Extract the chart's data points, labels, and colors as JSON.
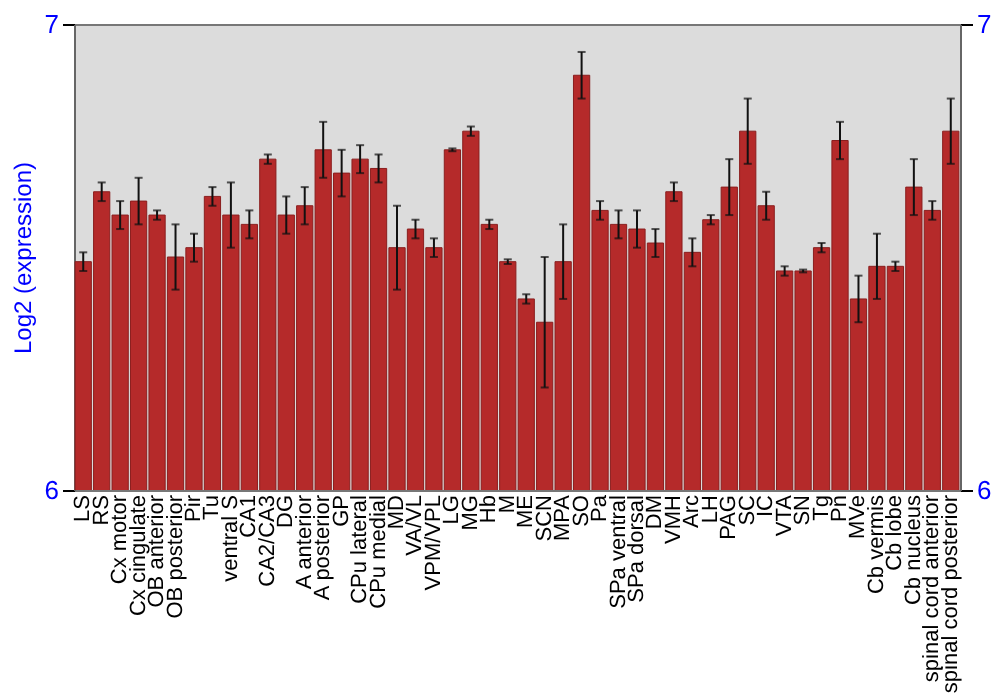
{
  "chart_data": {
    "type": "bar",
    "ylabel": "Log2 (expression)",
    "categories": [
      "LS",
      "RS",
      "Cx motor",
      "Cx cingulate",
      "OB anterior",
      "OB posterior",
      "Pir",
      "Tu",
      "ventral S",
      "CA1",
      "CA2/CA3",
      "DG",
      "A anterior",
      "A posterior",
      "GP",
      "CPu lateral",
      "CPu medial",
      "MD",
      "VA/VL",
      "VPM/VPL",
      "LG",
      "MG",
      "Hb",
      "M",
      "ME",
      "SCN",
      "MPA",
      "SO",
      "Pa",
      "SPa ventral",
      "SPa dorsal",
      "DM",
      "VMH",
      "Arc",
      "LH",
      "PAG",
      "SC",
      "IC",
      "VTA",
      "SN",
      "Tg",
      "Pn",
      "MVe",
      "Cb vermis",
      "Cb lobe",
      "Cb nucleus",
      "spinal cord anterior",
      "spinal cord posterior"
    ],
    "values": [
      6.49,
      6.64,
      6.59,
      6.62,
      6.59,
      6.5,
      6.52,
      6.63,
      6.59,
      6.57,
      6.71,
      6.59,
      6.61,
      6.73,
      6.68,
      6.71,
      6.69,
      6.52,
      6.56,
      6.52,
      6.73,
      6.77,
      6.57,
      6.49,
      6.41,
      6.36,
      6.49,
      6.89,
      6.6,
      6.57,
      6.56,
      6.53,
      6.64,
      6.51,
      6.58,
      6.65,
      6.77,
      6.61,
      6.47,
      6.47,
      6.52,
      6.75,
      6.41,
      6.48,
      6.48,
      6.65,
      6.6,
      6.77
    ],
    "errors": [
      0.02,
      0.02,
      0.03,
      0.05,
      0.01,
      0.07,
      0.03,
      0.02,
      0.07,
      0.03,
      0.01,
      0.04,
      0.04,
      0.06,
      0.05,
      0.03,
      0.03,
      0.09,
      0.02,
      0.02,
      0.003,
      0.01,
      0.01,
      0.005,
      0.01,
      0.14,
      0.08,
      0.05,
      0.02,
      0.03,
      0.04,
      0.03,
      0.02,
      0.03,
      0.01,
      0.06,
      0.07,
      0.03,
      0.01,
      0.003,
      0.01,
      0.04,
      0.05,
      0.07,
      0.01,
      0.06,
      0.02,
      0.07
    ],
    "color": "#b52a2a",
    "ylim": [
      6,
      7
    ],
    "yticks": [
      6,
      7
    ],
    "y2lim": [
      6,
      7
    ],
    "y2ticks": [
      6,
      7
    ],
    "grid": false
  }
}
